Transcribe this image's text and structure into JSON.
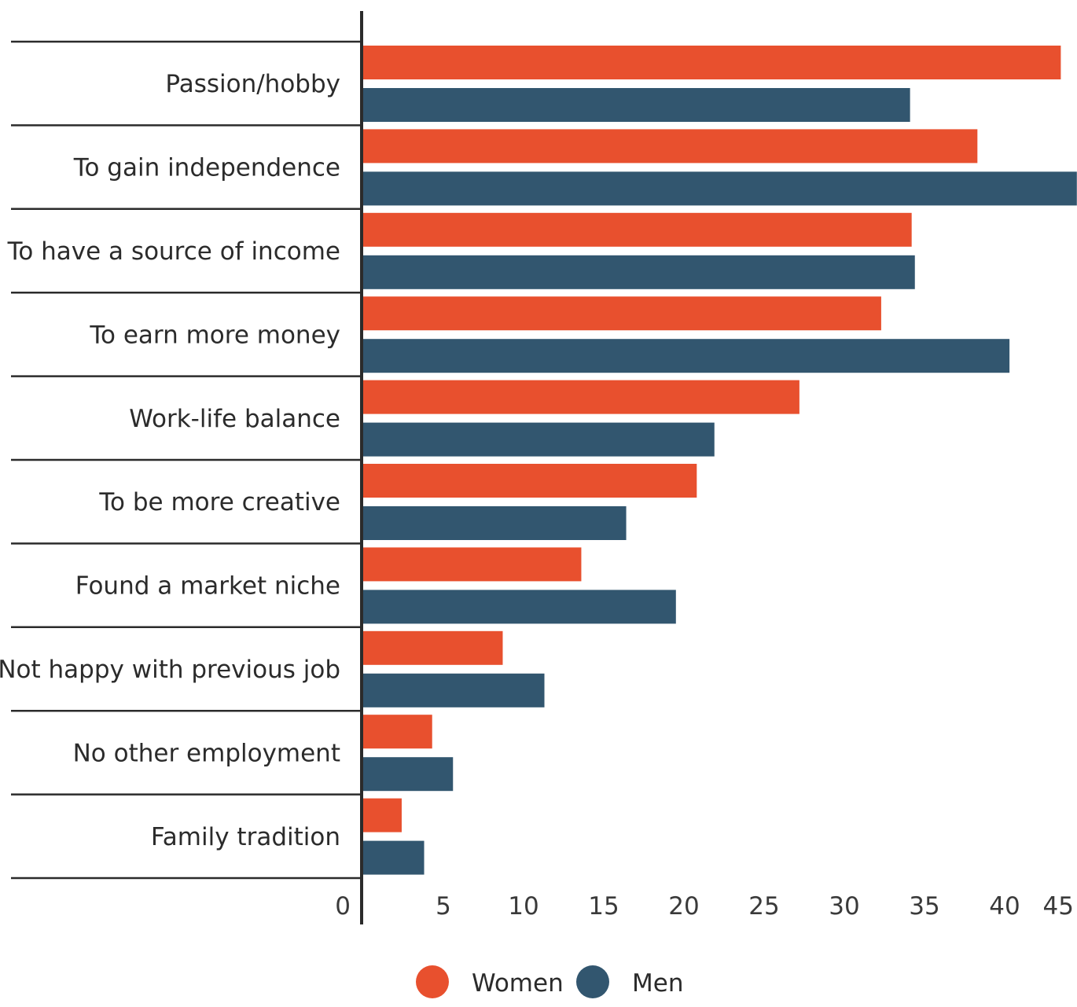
{
  "chart_data": {
    "type": "bar",
    "orientation": "horizontal",
    "title": "",
    "xlabel": "",
    "ylabel": "",
    "xlim": [
      0,
      45
    ],
    "ticks": [
      "0",
      "5",
      "10",
      "15",
      "20",
      "25",
      "30",
      "35",
      "40",
      "45"
    ],
    "categories": [
      "Passion/hobby",
      "To gain independence",
      "To have a source of income",
      "To earn more money",
      "Work-life balance",
      "To be more creative",
      "Found a market niche",
      "Not happy with previous job",
      "No other employment",
      "Family tradition"
    ],
    "series": [
      {
        "name": "Women",
        "color": "#e8502e",
        "values": [
          43.5,
          38.3,
          34.2,
          32.3,
          27.2,
          20.8,
          13.6,
          8.7,
          4.3,
          2.4
        ]
      },
      {
        "name": "Men",
        "color": "#32566f",
        "values": [
          34.1,
          44.5,
          34.4,
          40.3,
          21.9,
          16.4,
          19.5,
          11.3,
          5.6,
          3.8
        ]
      }
    ],
    "grid": false,
    "legend_position": "bottom-center"
  }
}
